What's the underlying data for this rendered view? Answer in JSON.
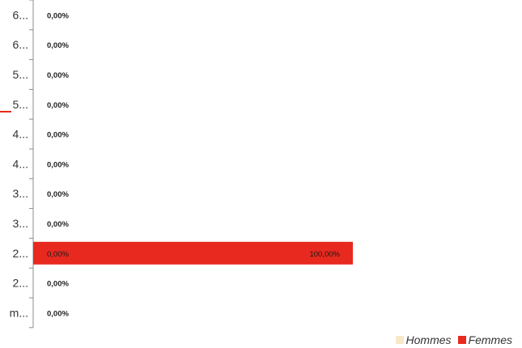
{
  "chart_data": {
    "type": "bar",
    "orientation": "horizontal",
    "stacked": true,
    "categories": [
      "6...",
      "6...",
      "5...",
      "5...",
      "4...",
      "4...",
      "3...",
      "3...",
      "2...",
      "2...",
      "m..."
    ],
    "series": [
      {
        "name": "Hommes",
        "color": "#f7e9c8",
        "values": [
          0,
          0,
          0,
          0,
          0,
          0,
          0,
          0,
          0,
          0,
          0
        ],
        "labels": [
          "0,00%",
          "0,00%",
          "0,00%",
          "0,00%",
          "0,00%",
          "0,00%",
          "0,00%",
          "0,00%",
          "0,00%",
          "0,00%",
          "0,00%"
        ]
      },
      {
        "name": "Femmes",
        "color": "#e8291f",
        "values": [
          0,
          0,
          0,
          0,
          0,
          0,
          0,
          0,
          100,
          0,
          0
        ],
        "labels": [
          "",
          "",
          "",
          "",
          "",
          "",
          "",
          "",
          "100,00%",
          "",
          ""
        ]
      }
    ],
    "xlim": [
      0,
      100
    ],
    "legend_position": "bottom-right",
    "grid": false
  }
}
